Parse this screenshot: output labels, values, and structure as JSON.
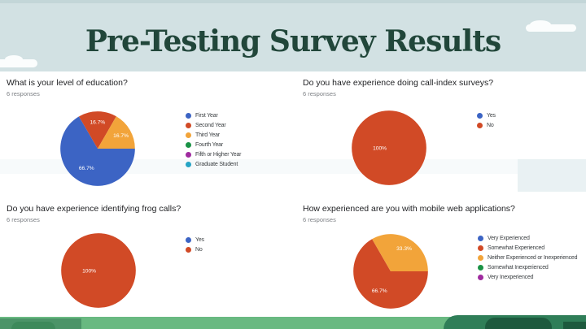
{
  "slide": {
    "title": "Pre-Testing Survey Results"
  },
  "chart_data": [
    {
      "type": "pie",
      "title": "What is your level of education?",
      "subtitle": "6 responses",
      "labels": [
        "First Year",
        "Second Year",
        "Third Year",
        "Fourth Year",
        "Fifth or Higher Year",
        "Graduate Student"
      ],
      "values": [
        66.7,
        16.7,
        16.7,
        0,
        0,
        0
      ],
      "slice_labels": [
        "66.7%",
        "16.7%",
        "16.7%",
        "",
        "",
        ""
      ],
      "colors": [
        "#3c64c4",
        "#d14a26",
        "#f2a43a",
        "#1a9245",
        "#9f2b9f",
        "#27a4c5"
      ],
      "legend_position": "right"
    },
    {
      "type": "pie",
      "title": "Do you have experience doing call-index surveys?",
      "subtitle": "6 responses",
      "labels": [
        "Yes",
        "No"
      ],
      "values": [
        0,
        100
      ],
      "slice_labels": [
        "",
        "100%"
      ],
      "colors": [
        "#3c64c4",
        "#d14a26"
      ],
      "legend_position": "right"
    },
    {
      "type": "pie",
      "title": "Do you have experience identifying frog calls?",
      "subtitle": "6 responses",
      "labels": [
        "Yes",
        "No"
      ],
      "values": [
        0,
        100
      ],
      "slice_labels": [
        "",
        "100%"
      ],
      "colors": [
        "#3c64c4",
        "#d14a26"
      ],
      "legend_position": "right"
    },
    {
      "type": "pie",
      "title": "How experienced are you with mobile web applications?",
      "subtitle": "6 responses",
      "labels": [
        "Very Experienced",
        "Somewhat Experienced",
        "Neither Experienced or Inexperienced",
        "Somewhat Inexperienced",
        "Very Inexperienced"
      ],
      "values": [
        0,
        66.7,
        33.3,
        0,
        0
      ],
      "slice_labels": [
        "",
        "66.7%",
        "33.3%",
        "",
        ""
      ],
      "colors": [
        "#3c64c4",
        "#d14a26",
        "#f2a43a",
        "#1a9245",
        "#9f2b9f"
      ],
      "legend_position": "right"
    }
  ]
}
